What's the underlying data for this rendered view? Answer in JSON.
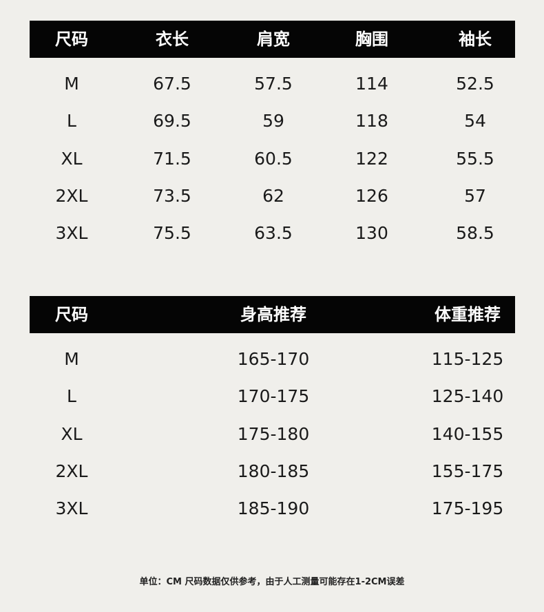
{
  "table1": {
    "headers": [
      "尺码",
      "衣长",
      "肩宽",
      "胸围",
      "袖长"
    ],
    "rows": [
      [
        "M",
        "67.5",
        "57.5",
        "114",
        "52.5"
      ],
      [
        "L",
        "69.5",
        "59",
        "118",
        "54"
      ],
      [
        "XL",
        "71.5",
        "60.5",
        "122",
        "55.5"
      ],
      [
        "2XL",
        "73.5",
        "62",
        "126",
        "57"
      ],
      [
        "3XL",
        "75.5",
        "63.5",
        "130",
        "58.5"
      ]
    ]
  },
  "table2": {
    "headers": [
      "尺码",
      "身高推荐",
      "体重推荐"
    ],
    "rows": [
      [
        "M",
        "165-170",
        "115-125"
      ],
      [
        "L",
        "170-175",
        "125-140"
      ],
      [
        "XL",
        "175-180",
        "140-155"
      ],
      [
        "2XL",
        "180-185",
        "155-175"
      ],
      [
        "3XL",
        "185-190",
        "175-195"
      ]
    ]
  },
  "footer": "单位：CM 尺码数据仅供参考，由于人工测量可能存在1-2CM误差",
  "colors": {
    "background": "#f0efeb",
    "header": "#050505"
  }
}
